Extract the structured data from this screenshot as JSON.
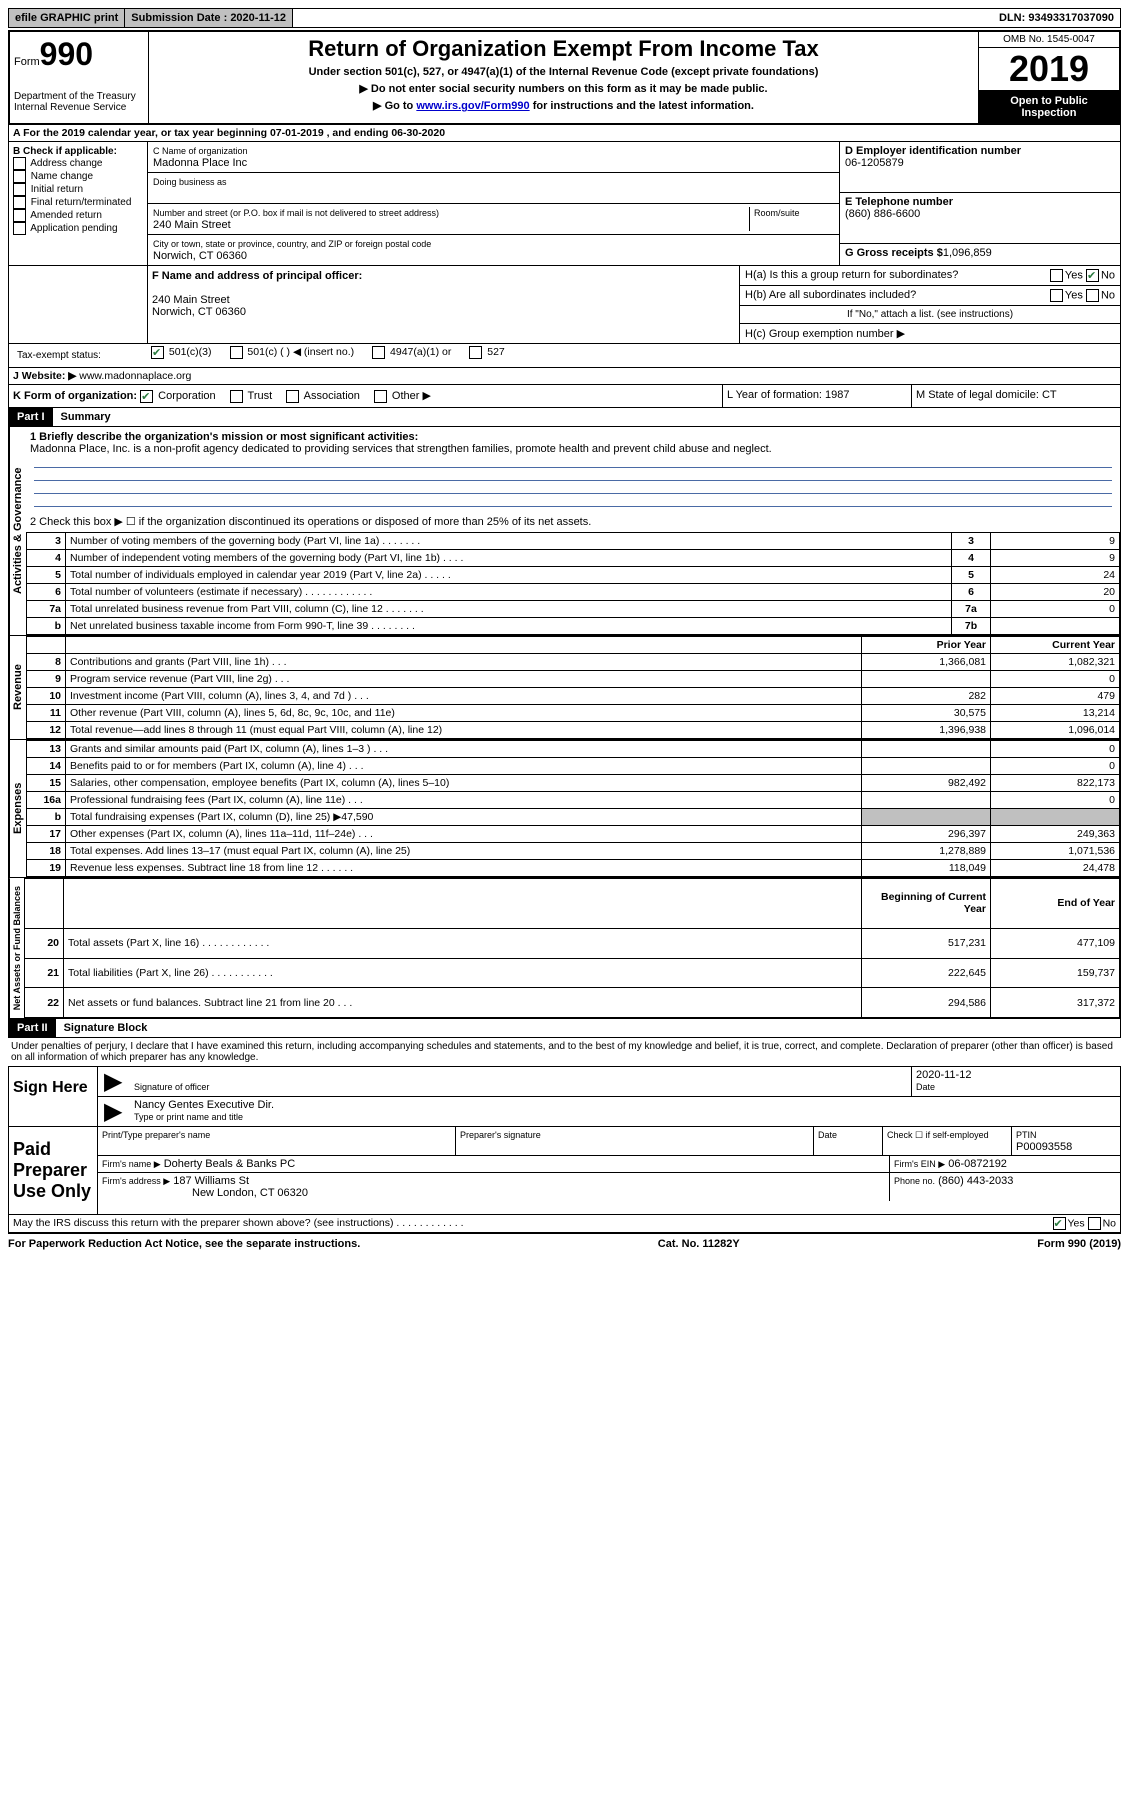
{
  "top": {
    "efile": "efile GRAPHIC print",
    "sub_label": "Submission Date : 2020-11-12",
    "dln": "DLN: 93493317037090"
  },
  "header": {
    "form": "Form",
    "formnum": "990",
    "dept1": "Department of the Treasury",
    "dept2": "Internal Revenue Service",
    "title": "Return of Organization Exempt From Income Tax",
    "sub1": "Under section 501(c), 527, or 4947(a)(1) of the Internal Revenue Code (except private foundations)",
    "sub2": "▶ Do not enter social security numbers on this form as it may be made public.",
    "sub3_pre": "▶ Go to ",
    "sub3_link": "www.irs.gov/Form990",
    "sub3_post": " for instructions and the latest information.",
    "omb": "OMB No. 1545-0047",
    "year": "2019",
    "open": "Open to Public Inspection"
  },
  "a_line": "A For the 2019 calendar year, or tax year beginning 07-01-2019    , and ending 06-30-2020",
  "b": {
    "title": "B Check if applicable:",
    "items": [
      "Address change",
      "Name change",
      "Initial return",
      "Final return/terminated",
      "Amended return",
      "Application pending"
    ]
  },
  "c": {
    "name_label": "C Name of organization",
    "name": "Madonna Place Inc",
    "dba_label": "Doing business as",
    "addr_label": "Number and street (or P.O. box if mail is not delivered to street address)",
    "room_label": "Room/suite",
    "addr": "240 Main Street",
    "city_label": "City or town, state or province, country, and ZIP or foreign postal code",
    "city": "Norwich, CT  06360"
  },
  "d": {
    "label": "D Employer identification number",
    "val": "06-1205879"
  },
  "e": {
    "label": "E Telephone number",
    "val": "(860) 886-6600"
  },
  "g": {
    "label": "G Gross receipts $",
    "val": "1,096,859"
  },
  "f": {
    "label": "F Name and address of principal officer:",
    "addr1": "240 Main Street",
    "addr2": "Norwich, CT  06360"
  },
  "h": {
    "a": "H(a)  Is this a group return for subordinates?",
    "b": "H(b)  Are all subordinates included?",
    "b_note": "If \"No,\" attach a list. (see instructions)",
    "c": "H(c)  Group exemption number ▶"
  },
  "tax_status": "Tax-exempt status:",
  "tax_opts": [
    "501(c)(3)",
    "501(c) (  ) ◀ (insert no.)",
    "4947(a)(1) or",
    "527"
  ],
  "j": {
    "label": "J Website: ▶",
    "val": "www.madonnaplace.org"
  },
  "k": "K Form of organization:",
  "k_opts": [
    "Corporation",
    "Trust",
    "Association",
    "Other ▶"
  ],
  "l": "L Year of formation: 1987",
  "m": "M State of legal domicile: CT",
  "part1": {
    "header": "Part I",
    "title": "Summary",
    "line1": "1   Briefly describe the organization's mission or most significant activities:",
    "mission": "Madonna Place, Inc. is a non-profit agency dedicated to providing services that strengthen families, promote health and prevent child abuse and neglect.",
    "line2": "2   Check this box ▶ ☐  if the organization discontinued its operations or disposed of more than 25% of its net assets.",
    "vlabel_gov": "Activities & Governance",
    "vlabel_rev": "Revenue",
    "vlabel_exp": "Expenses",
    "vlabel_net": "Net Assets or Fund Balances",
    "col_prior": "Prior Year",
    "col_current": "Current Year",
    "col_beg": "Beginning of Current Year",
    "col_end": "End of Year",
    "rows_gov": [
      {
        "n": "3",
        "d": "Number of voting members of the governing body (Part VI, line 1a)   .    .    .    .    .    .    .",
        "box": "3",
        "v": "9"
      },
      {
        "n": "4",
        "d": "Number of independent voting members of the governing body (Part VI, line 1b)   .    .    .    .",
        "box": "4",
        "v": "9"
      },
      {
        "n": "5",
        "d": "Total number of individuals employed in calendar year 2019 (Part V, line 2a)   .    .    .    .    .",
        "box": "5",
        "v": "24"
      },
      {
        "n": "6",
        "d": "Total number of volunteers (estimate if necessary)    .    .    .    .    .    .    .    .    .    .    .    .",
        "box": "6",
        "v": "20"
      },
      {
        "n": "7a",
        "d": "Total unrelated business revenue from Part VIII, column (C), line 12   .    .    .    .    .    .    .",
        "box": "7a",
        "v": "0"
      },
      {
        "n": "b",
        "d": "Net unrelated business taxable income from Form 990-T, line 39    .    .    .    .    .    .    .    .",
        "box": "7b",
        "v": ""
      }
    ],
    "rows_rev": [
      {
        "n": "8",
        "d": "Contributions and grants (Part VIII, line 1h)    .    .    .",
        "p": "1,366,081",
        "c": "1,082,321"
      },
      {
        "n": "9",
        "d": "Program service revenue (Part VIII, line 2g)    .    .    .",
        "p": "",
        "c": "0"
      },
      {
        "n": "10",
        "d": "Investment income (Part VIII, column (A), lines 3, 4, and 7d )    .    .    .",
        "p": "282",
        "c": "479"
      },
      {
        "n": "11",
        "d": "Other revenue (Part VIII, column (A), lines 5, 6d, 8c, 9c, 10c, and 11e)",
        "p": "30,575",
        "c": "13,214"
      },
      {
        "n": "12",
        "d": "Total revenue—add lines 8 through 11 (must equal Part VIII, column (A), line 12)",
        "p": "1,396,938",
        "c": "1,096,014"
      }
    ],
    "rows_exp": [
      {
        "n": "13",
        "d": "Grants and similar amounts paid (Part IX, column (A), lines 1–3 )   .    .    .",
        "p": "",
        "c": "0"
      },
      {
        "n": "14",
        "d": "Benefits paid to or for members (Part IX, column (A), line 4)   .    .    .",
        "p": "",
        "c": "0"
      },
      {
        "n": "15",
        "d": "Salaries, other compensation, employee benefits (Part IX, column (A), lines 5–10)",
        "p": "982,492",
        "c": "822,173"
      },
      {
        "n": "16a",
        "d": "Professional fundraising fees (Part IX, column (A), line 11e)   .    .    .",
        "p": "",
        "c": "0"
      },
      {
        "n": "b",
        "d": "Total fundraising expenses (Part IX, column (D), line 25) ▶47,590",
        "p": "SHADE",
        "c": "SHADE"
      },
      {
        "n": "17",
        "d": "Other expenses (Part IX, column (A), lines 11a–11d, 11f–24e)   .    .    .",
        "p": "296,397",
        "c": "249,363"
      },
      {
        "n": "18",
        "d": "Total expenses. Add lines 13–17 (must equal Part IX, column (A), line 25)",
        "p": "1,278,889",
        "c": "1,071,536"
      },
      {
        "n": "19",
        "d": "Revenue less expenses. Subtract line 18 from line 12 .    .    .    .    .    .",
        "p": "118,049",
        "c": "24,478"
      }
    ],
    "rows_net": [
      {
        "n": "20",
        "d": "Total assets (Part X, line 16)   .    .    .    .    .    .    .    .    .    .    .    .",
        "p": "517,231",
        "c": "477,109"
      },
      {
        "n": "21",
        "d": "Total liabilities (Part X, line 26)   .    .    .    .    .    .    .    .    .    .    .",
        "p": "222,645",
        "c": "159,737"
      },
      {
        "n": "22",
        "d": "Net assets or fund balances. Subtract line 21 from line 20   .    .    .",
        "p": "294,586",
        "c": "317,372"
      }
    ]
  },
  "part2": {
    "header": "Part II",
    "title": "Signature Block",
    "decl": "Under penalties of perjury, I declare that I have examined this return, including accompanying schedules and statements, and to the best of my knowledge and belief, it is true, correct, and complete. Declaration of preparer (other than officer) is based on all information of which preparer has any knowledge.",
    "sign_here": "Sign Here",
    "sig_officer": "Signature of officer",
    "date": "Date",
    "date_val": "2020-11-12",
    "name_title": "Nancy Gentes  Executive Dir.",
    "type_name": "Type or print name and title",
    "paid_prep": "Paid Preparer Use Only",
    "prep_name_label": "Print/Type preparer's name",
    "prep_sig_label": "Preparer's signature",
    "date_label": "Date",
    "check_self": "Check ☐ if self-employed",
    "ptin_label": "PTIN",
    "ptin": "P00093558",
    "firm_name_label": "Firm's name    ▶",
    "firm_name": "Doherty Beals & Banks PC",
    "firm_ein_label": "Firm's EIN ▶",
    "firm_ein": "06-0872192",
    "firm_addr_label": "Firm's address ▶",
    "firm_addr1": "187 Williams St",
    "firm_addr2": "New London, CT  06320",
    "phone_label": "Phone no.",
    "phone": "(860) 443-2033",
    "discuss": "May the IRS discuss this return with the preparer shown above? (see instructions)    .    .    .    .    .    .    .    .    .    .    .    ."
  },
  "footer": {
    "pra": "For Paperwork Reduction Act Notice, see the separate instructions.",
    "cat": "Cat. No. 11282Y",
    "form": "Form 990 (2019)"
  }
}
